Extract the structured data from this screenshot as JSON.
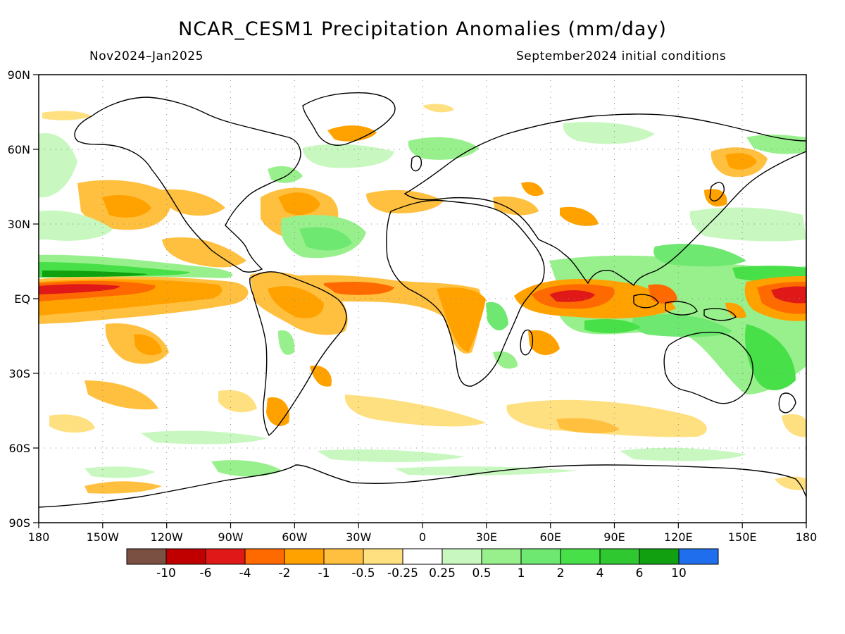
{
  "figure": {
    "title": "NCAR_CESM1 Precipitation Anomalies (mm/day)",
    "period": "Nov2024–Jan2025",
    "init": "September2024 initial conditions"
  },
  "axes": {
    "lon_labels": [
      "180",
      "150W",
      "120W",
      "90W",
      "60W",
      "30W",
      "0",
      "30E",
      "60E",
      "90E",
      "120E",
      "150E",
      "180"
    ],
    "lat_labels": [
      "90N",
      "60N",
      "30N",
      "EQ",
      "30S",
      "60S",
      "90S"
    ]
  },
  "colorbar": {
    "colors": [
      "#7a5042",
      "#c00000",
      "#e01818",
      "#ff6a00",
      "#ffa200",
      "#ffc040",
      "#ffe080",
      "#ffffff",
      "#c8f8c0",
      "#98f08c",
      "#6ee870",
      "#48e048",
      "#30c830",
      "#10a010",
      "#1e6eee"
    ],
    "labels": [
      "-10",
      "-6",
      "-4",
      "-2",
      "-1",
      "-0.5",
      "-0.25",
      "0.25",
      "0.5",
      "1",
      "2",
      "4",
      "6",
      "10"
    ]
  },
  "chart_data": {
    "type": "map",
    "title": "NCAR_CESM1 Precipitation Anomalies (mm/day)",
    "period": "Nov2024–Jan2025",
    "init": "September2024 initial conditions",
    "lon_range": [
      -180,
      180
    ],
    "lat_range": [
      -90,
      90
    ],
    "units": "mm/day",
    "levels": [
      -10,
      -6,
      -4,
      -2,
      -1,
      -0.5,
      -0.25,
      0.25,
      0.5,
      1,
      2,
      4,
      6,
      10
    ],
    "grid": true
  }
}
